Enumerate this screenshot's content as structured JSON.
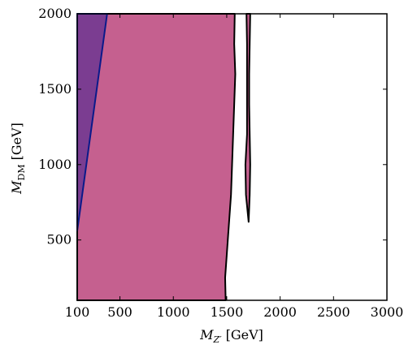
{
  "chart_data": {
    "type": "area",
    "xlabel": {
      "main": "M",
      "sub": "Z′",
      "unit": "[GeV]"
    },
    "ylabel": {
      "main": "M",
      "sub": "DM",
      "unit": "[GeV]"
    },
    "xlim": [
      100,
      3000
    ],
    "ylim": [
      100,
      2000
    ],
    "xticks": [
      {
        "value": 100,
        "label": "100"
      },
      {
        "value": 500,
        "label": "500"
      },
      {
        "value": 1000,
        "label": "1000"
      },
      {
        "value": 1500,
        "label": "1500"
      },
      {
        "value": 2000,
        "label": "2000"
      },
      {
        "value": 2500,
        "label": "2500"
      },
      {
        "value": 3000,
        "label": "3000"
      }
    ],
    "yticks": [
      {
        "value": 500,
        "label": "500"
      },
      {
        "value": 1000,
        "label": "1000"
      },
      {
        "value": 1500,
        "label": "1500"
      },
      {
        "value": 2000,
        "label": "2000"
      }
    ],
    "regions": [
      {
        "color": "#c5608f",
        "stroke": "#000000",
        "points": [
          [
            100,
            100
          ],
          [
            1490,
            100
          ],
          [
            1485,
            250
          ],
          [
            1500,
            400
          ],
          [
            1520,
            600
          ],
          [
            1540,
            800
          ],
          [
            1550,
            1000
          ],
          [
            1560,
            1200
          ],
          [
            1570,
            1400
          ],
          [
            1580,
            1600
          ],
          [
            1570,
            1800
          ],
          [
            1575,
            2000
          ],
          [
            100,
            2000
          ]
        ]
      },
      {
        "color": "#c5608f",
        "stroke": "#000000",
        "points": [
          [
            1685,
            2000
          ],
          [
            1720,
            2000
          ],
          [
            1715,
            1800
          ],
          [
            1710,
            1600
          ],
          [
            1710,
            1400
          ],
          [
            1715,
            1200
          ],
          [
            1720,
            1000
          ],
          [
            1715,
            800
          ],
          [
            1705,
            620
          ],
          [
            1680,
            800
          ],
          [
            1675,
            1000
          ],
          [
            1690,
            1200
          ],
          [
            1690,
            1400
          ],
          [
            1690,
            1600
          ],
          [
            1690,
            1800
          ]
        ]
      },
      {
        "color": "#7b3d91",
        "stroke": "#0a1a8a",
        "points": [
          [
            100,
            2000
          ],
          [
            380,
            2000
          ],
          [
            100,
            560
          ]
        ]
      }
    ]
  }
}
